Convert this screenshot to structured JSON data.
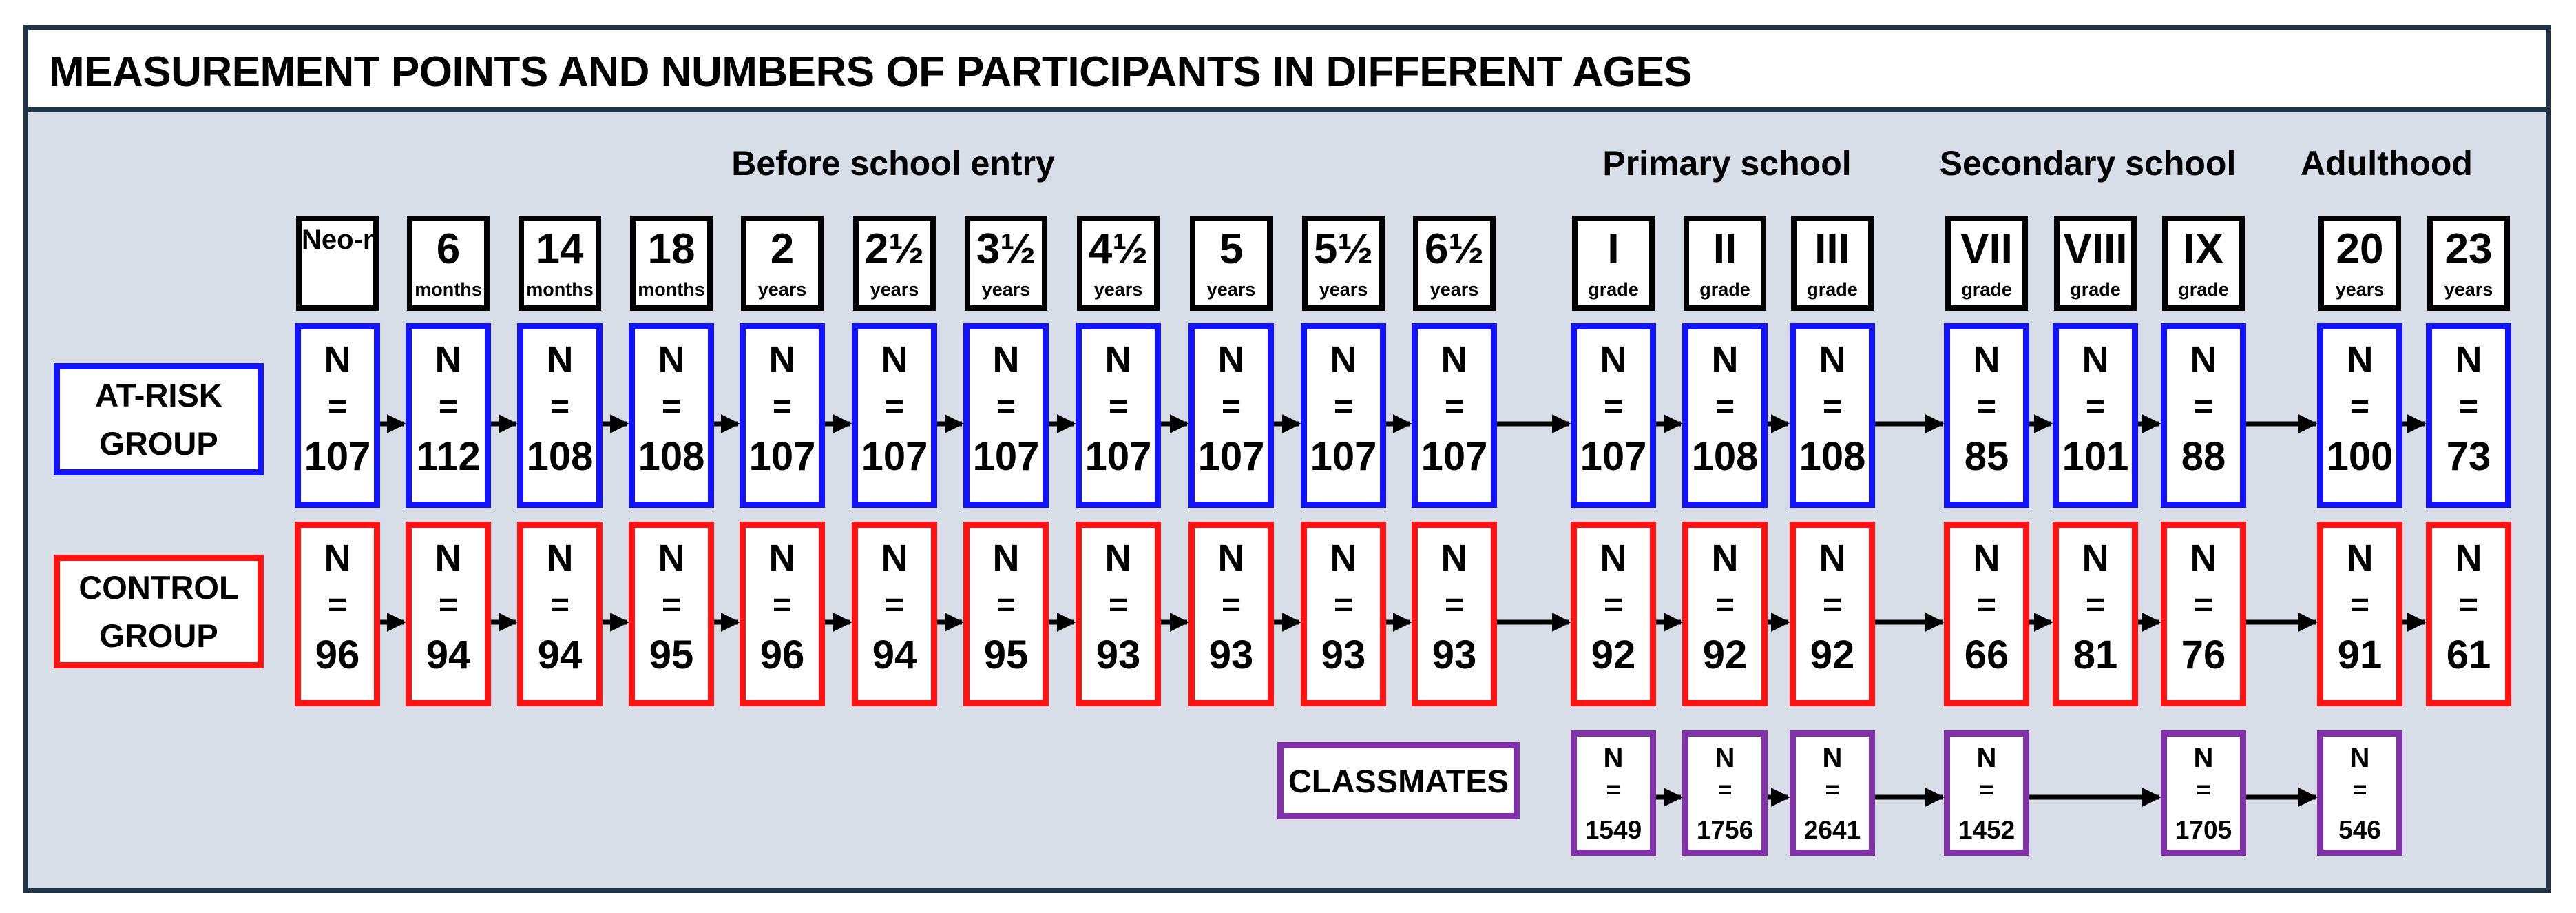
{
  "title": "MEASUREMENT POINTS AND NUMBERS OF PARTICIPANTS IN DIFFERENT AGES",
  "sections": [
    "Before school entry",
    "Primary school",
    "Secondary school",
    "Adulthood"
  ],
  "groups": {
    "at_risk": "AT-RISK GROUP",
    "control": "CONTROL GROUP",
    "classmates": "CLASSMATES"
  },
  "n_symbol": "N",
  "eq_symbol": "=",
  "colors": {
    "at_risk": "#1212ff",
    "control": "#ff1212",
    "classmates": "#8031a7",
    "frame": "#1f3246",
    "panel": "#d8dee7"
  },
  "timepoints": [
    {
      "main": "Neo-natal",
      "sub": "",
      "at_risk": "107",
      "control": "96",
      "classmates": ""
    },
    {
      "main": "6",
      "sub": "months",
      "at_risk": "112",
      "control": "94",
      "classmates": ""
    },
    {
      "main": "14",
      "sub": "months",
      "at_risk": "108",
      "control": "94",
      "classmates": ""
    },
    {
      "main": "18",
      "sub": "months",
      "at_risk": "108",
      "control": "95",
      "classmates": ""
    },
    {
      "main": "2",
      "sub": "years",
      "at_risk": "107",
      "control": "96",
      "classmates": ""
    },
    {
      "main": "2½",
      "sub": "years",
      "at_risk": "107",
      "control": "94",
      "classmates": ""
    },
    {
      "main": "3½",
      "sub": "years",
      "at_risk": "107",
      "control": "95",
      "classmates": ""
    },
    {
      "main": "4½",
      "sub": "years",
      "at_risk": "107",
      "control": "93",
      "classmates": ""
    },
    {
      "main": "5",
      "sub": "years",
      "at_risk": "107",
      "control": "93",
      "classmates": ""
    },
    {
      "main": "5½",
      "sub": "years",
      "at_risk": "107",
      "control": "93",
      "classmates": ""
    },
    {
      "main": "6½",
      "sub": "years",
      "at_risk": "107",
      "control": "93",
      "classmates": ""
    },
    {
      "main": "I",
      "sub": "grade",
      "at_risk": "107",
      "control": "92",
      "classmates": "1549"
    },
    {
      "main": "II",
      "sub": "grade",
      "at_risk": "108",
      "control": "92",
      "classmates": "1756"
    },
    {
      "main": "III",
      "sub": "grade",
      "at_risk": "108",
      "control": "92",
      "classmates": "2641"
    },
    {
      "main": "VII",
      "sub": "grade",
      "at_risk": "85",
      "control": "66",
      "classmates": "1452"
    },
    {
      "main": "VIII",
      "sub": "grade",
      "at_risk": "101",
      "control": "81",
      "classmates": ""
    },
    {
      "main": "IX",
      "sub": "grade",
      "at_risk": "88",
      "control": "76",
      "classmates": "1705"
    },
    {
      "main": "20",
      "sub": "years",
      "at_risk": "100",
      "control": "91",
      "classmates": "546"
    },
    {
      "main": "23",
      "sub": "years",
      "at_risk": "73",
      "control": "61",
      "classmates": ""
    }
  ]
}
